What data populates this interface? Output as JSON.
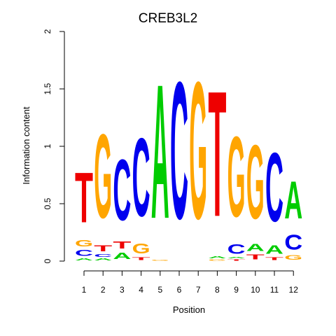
{
  "chart_data": {
    "type": "sequence-logo",
    "title": "CREB3L2",
    "xlabel": "Position",
    "ylabel": "Information content",
    "ylim": [
      0,
      2
    ],
    "yticks": [
      "0",
      "0.5",
      "1",
      "1.5",
      "2"
    ],
    "xticks": [
      "1",
      "2",
      "3",
      "4",
      "5",
      "6",
      "7",
      "8",
      "9",
      "10",
      "11",
      "12"
    ],
    "colors": {
      "A": "#00cc00",
      "C": "#0000ee",
      "G": "#ffa500",
      "T": "#ee0000"
    },
    "positions": [
      {
        "x": "1",
        "stack": [
          {
            "base": "A",
            "value": 0.03
          },
          {
            "base": "C",
            "value": 0.08
          },
          {
            "base": "G",
            "value": 0.09
          },
          {
            "base": "T",
            "value": 0.7
          }
        ]
      },
      {
        "x": "2",
        "stack": [
          {
            "base": "A",
            "value": 0.03
          },
          {
            "base": "C",
            "value": 0.04
          },
          {
            "base": "T",
            "value": 0.08
          },
          {
            "base": "G",
            "value": 1.17
          }
        ]
      },
      {
        "x": "3",
        "stack": [
          {
            "base": "A",
            "value": 0.09
          },
          {
            "base": "T",
            "value": 0.1
          },
          {
            "base": "C",
            "value": 0.85
          }
        ]
      },
      {
        "x": "4",
        "stack": [
          {
            "base": "T",
            "value": 0.04
          },
          {
            "base": "G",
            "value": 0.14
          },
          {
            "base": "C",
            "value": 1.09
          }
        ]
      },
      {
        "x": "5",
        "stack": [
          {
            "base": "G",
            "value": 0.01
          },
          {
            "base": "A",
            "value": 1.87
          }
        ]
      },
      {
        "x": "6",
        "stack": [
          {
            "base": "C",
            "value": 1.91
          }
        ]
      },
      {
        "x": "7",
        "stack": [
          {
            "base": "G",
            "value": 1.91
          }
        ]
      },
      {
        "x": "8",
        "stack": [
          {
            "base": "G",
            "value": 0.02
          },
          {
            "base": "A",
            "value": 0.03
          },
          {
            "base": "T",
            "value": 1.75
          }
        ]
      },
      {
        "x": "9",
        "stack": [
          {
            "base": "T",
            "value": 0.02
          },
          {
            "base": "A",
            "value": 0.02
          },
          {
            "base": "C",
            "value": 0.13
          },
          {
            "base": "G",
            "value": 1.12
          }
        ]
      },
      {
        "x": "10",
        "stack": [
          {
            "base": "T",
            "value": 0.07
          },
          {
            "base": "A",
            "value": 0.1
          },
          {
            "base": "G",
            "value": 1.03
          }
        ]
      },
      {
        "x": "11",
        "stack": [
          {
            "base": "T",
            "value": 0.04
          },
          {
            "base": "A",
            "value": 0.12
          },
          {
            "base": "C",
            "value": 0.96
          }
        ]
      },
      {
        "x": "12",
        "stack": [
          {
            "base": "G",
            "value": 0.06
          },
          {
            "base": "C",
            "value": 0.21
          },
          {
            "base": "A",
            "value": 0.52
          }
        ]
      }
    ]
  }
}
